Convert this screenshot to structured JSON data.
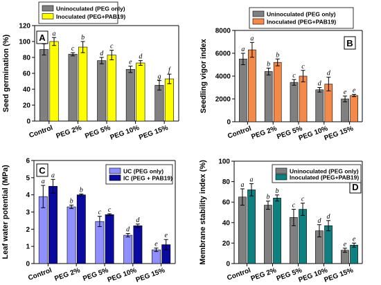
{
  "chart_data": [
    {
      "id": "A",
      "type": "bar",
      "panel_label": "A",
      "ylabel": "Seed germination (%)",
      "ylim": [
        0,
        120
      ],
      "yticks": [
        0,
        20,
        40,
        60,
        80,
        100,
        120
      ],
      "categories": [
        "Control",
        "PEG 2%",
        "PEG 5%",
        "PEG 10%",
        "PEG 15%"
      ],
      "legend_position": "top",
      "series": [
        {
          "name": "Uninoculated (PEG only)",
          "color": "#808080",
          "values": [
            90,
            84,
            76,
            65,
            45
          ],
          "errors": [
            7,
            2,
            4,
            4,
            6
          ],
          "letters": [
            "b",
            "c",
            "d",
            "e",
            "g"
          ]
        },
        {
          "name": "Inoculated (PEG+PAB19)",
          "color": "#ffff00",
          "values": [
            100,
            93,
            83,
            73,
            53
          ],
          "errors": [
            5,
            7,
            6,
            3,
            6
          ],
          "letters": [
            "a",
            "b",
            "c",
            "d",
            "f"
          ]
        }
      ]
    },
    {
      "id": "B",
      "type": "bar",
      "panel_label": "B",
      "ylabel": "Seedling vigor index",
      "ylim": [
        0,
        8000
      ],
      "yticks": [
        0,
        2000,
        4000,
        6000,
        8000
      ],
      "categories": [
        "Control",
        "PEG 2%",
        "PEG 5%",
        "PEG 10%",
        "PEG 15%"
      ],
      "legend_position": "top",
      "series": [
        {
          "name": "Uninoculated (PEG only)",
          "color": "#808080",
          "values": [
            5500,
            4400,
            3450,
            2800,
            2000
          ],
          "errors": [
            500,
            300,
            250,
            200,
            250
          ],
          "letters": [
            "a",
            "b",
            "c",
            "d",
            "e"
          ]
        },
        {
          "name": "Inoculated (PEG+PAB19)",
          "color": "#f4894a",
          "values": [
            6300,
            5200,
            4000,
            3300,
            2300
          ],
          "errors": [
            650,
            300,
            500,
            600,
            100
          ],
          "letters": [
            "a",
            "b",
            "c",
            "d",
            "e"
          ]
        }
      ]
    },
    {
      "id": "C",
      "type": "bar",
      "panel_label": "C",
      "ylabel": "Leaf water potential (MPa)",
      "ylim": [
        0,
        6
      ],
      "yticks": [
        0,
        1,
        2,
        3,
        4,
        5,
        6
      ],
      "categories": [
        "Control",
        "PEG 2%",
        "PEG 5%",
        "PEG 10%",
        "PEG 15%"
      ],
      "legend_position": "top-right",
      "series": [
        {
          "name": "UC (PEG only)",
          "color": "#8f8fff",
          "values": [
            3.9,
            3.3,
            2.45,
            1.65,
            0.8
          ],
          "errors": [
            0.65,
            0.1,
            0.3,
            0.1,
            0.1
          ],
          "letters": [
            "a",
            "b",
            "c",
            "d",
            "e"
          ]
        },
        {
          "name": "IC (PEG + PAB19)",
          "color": "#0a0a9e",
          "values": [
            4.5,
            4.0,
            2.85,
            2.2,
            1.1
          ],
          "errors": [
            0.4,
            0.05,
            0.05,
            0.1,
            0.3
          ],
          "letters": [
            "a",
            "b",
            "c",
            "d",
            "e"
          ]
        }
      ]
    },
    {
      "id": "D",
      "type": "bar",
      "panel_label": "D",
      "ylabel": "Membrane stability index (%)",
      "ylim": [
        0,
        100
      ],
      "yticks": [
        0,
        20,
        40,
        60,
        80,
        100
      ],
      "categories": [
        "Control",
        "PEG 2%",
        "PEG 5%",
        "PEG 10%",
        "PEG 15%"
      ],
      "legend_position": "top-right",
      "series": [
        {
          "name": "Uninoculated (PEG only)",
          "color": "#808080",
          "values": [
            65,
            57,
            45,
            32,
            13
          ],
          "errors": [
            8,
            4,
            8,
            6,
            2
          ],
          "letters": [
            "a",
            "b",
            "c",
            "d",
            "e"
          ]
        },
        {
          "name": "Inoculated (PEG+PAB19)",
          "color": "#0f8080",
          "values": [
            72,
            64,
            53,
            37,
            18
          ],
          "errors": [
            6,
            3,
            6,
            5,
            2
          ],
          "letters": [
            "a",
            "b",
            "c",
            "d",
            "e"
          ]
        }
      ]
    }
  ]
}
